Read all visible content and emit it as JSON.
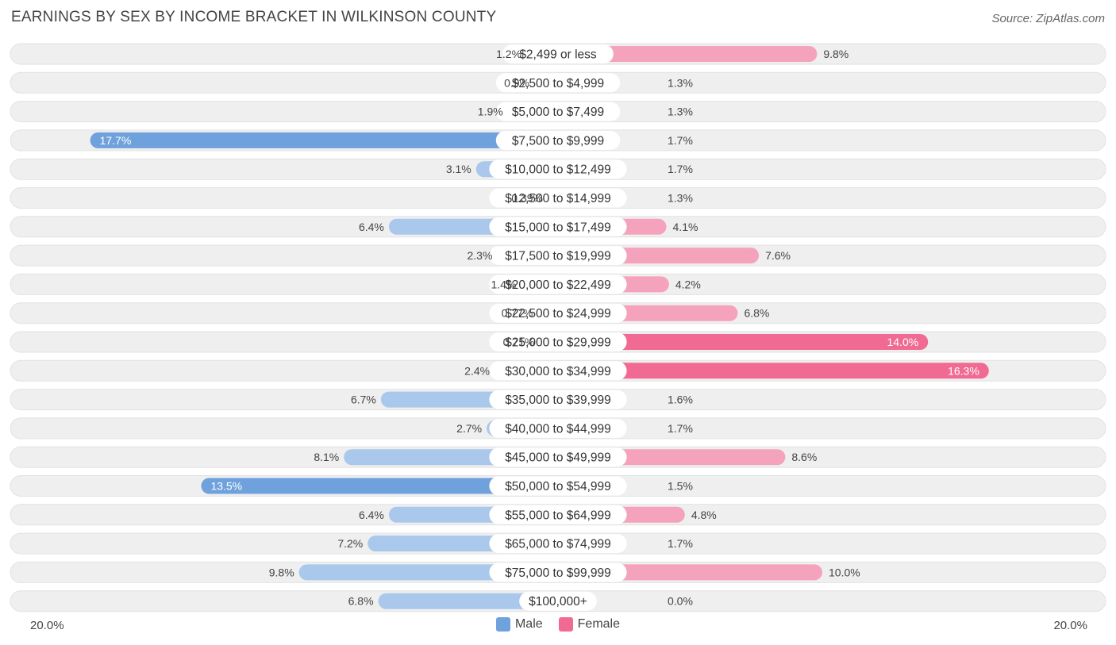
{
  "header": {
    "title": "EARNINGS BY SEX BY INCOME BRACKET IN WILKINSON COUNTY",
    "source": "Source: ZipAtlas.com"
  },
  "colors": {
    "male": "#6fa1dc",
    "male_light": "#a9c8ec",
    "female": "#f06a94",
    "female_light": "#f5a3bd",
    "row_bg": "#efefef"
  },
  "legend": {
    "male_label": "Male",
    "female_label": "Female"
  },
  "axis": {
    "left_label": "20.0%",
    "right_label": "20.0%"
  },
  "chart_data": {
    "type": "bar",
    "orientation": "horizontal-diverging",
    "title": "EARNINGS BY SEX BY INCOME BRACKET IN WILKINSON COUNTY",
    "xlim": [
      -20,
      20
    ],
    "categories": [
      "$2,499 or less",
      "$2,500 to $4,999",
      "$5,000 to $7,499",
      "$7,500 to $9,999",
      "$10,000 to $12,499",
      "$12,500 to $14,999",
      "$15,000 to $17,499",
      "$17,500 to $19,999",
      "$20,000 to $22,499",
      "$22,500 to $24,999",
      "$25,000 to $29,999",
      "$30,000 to $34,999",
      "$35,000 to $39,999",
      "$40,000 to $44,999",
      "$45,000 to $49,999",
      "$50,000 to $54,999",
      "$55,000 to $64,999",
      "$65,000 to $74,999",
      "$75,000 to $99,999",
      "$100,000+"
    ],
    "series": [
      {
        "name": "Male",
        "values": [
          1.2,
          0.9,
          1.9,
          17.7,
          3.1,
          0.39,
          6.4,
          2.3,
          1.4,
          0.77,
          0.71,
          2.4,
          6.7,
          2.7,
          8.1,
          13.5,
          6.4,
          7.2,
          9.8,
          6.8
        ],
        "labels": [
          "1.2%",
          "0.9%",
          "1.9%",
          "17.7%",
          "3.1%",
          "0.39%",
          "6.4%",
          "2.3%",
          "1.4%",
          "0.77%",
          "0.71%",
          "2.4%",
          "6.7%",
          "2.7%",
          "8.1%",
          "13.5%",
          "6.4%",
          "7.2%",
          "9.8%",
          "6.8%"
        ]
      },
      {
        "name": "Female",
        "values": [
          9.8,
          1.3,
          1.3,
          1.7,
          1.7,
          1.3,
          4.1,
          7.6,
          4.2,
          6.8,
          14.0,
          16.3,
          1.6,
          1.7,
          8.6,
          1.5,
          4.8,
          1.7,
          10.0,
          0.0
        ],
        "labels": [
          "9.8%",
          "1.3%",
          "1.3%",
          "1.7%",
          "1.7%",
          "1.3%",
          "4.1%",
          "7.6%",
          "4.2%",
          "6.8%",
          "14.0%",
          "16.3%",
          "1.6%",
          "1.7%",
          "8.6%",
          "1.5%",
          "4.8%",
          "1.7%",
          "10.0%",
          "0.0%"
        ]
      }
    ]
  }
}
